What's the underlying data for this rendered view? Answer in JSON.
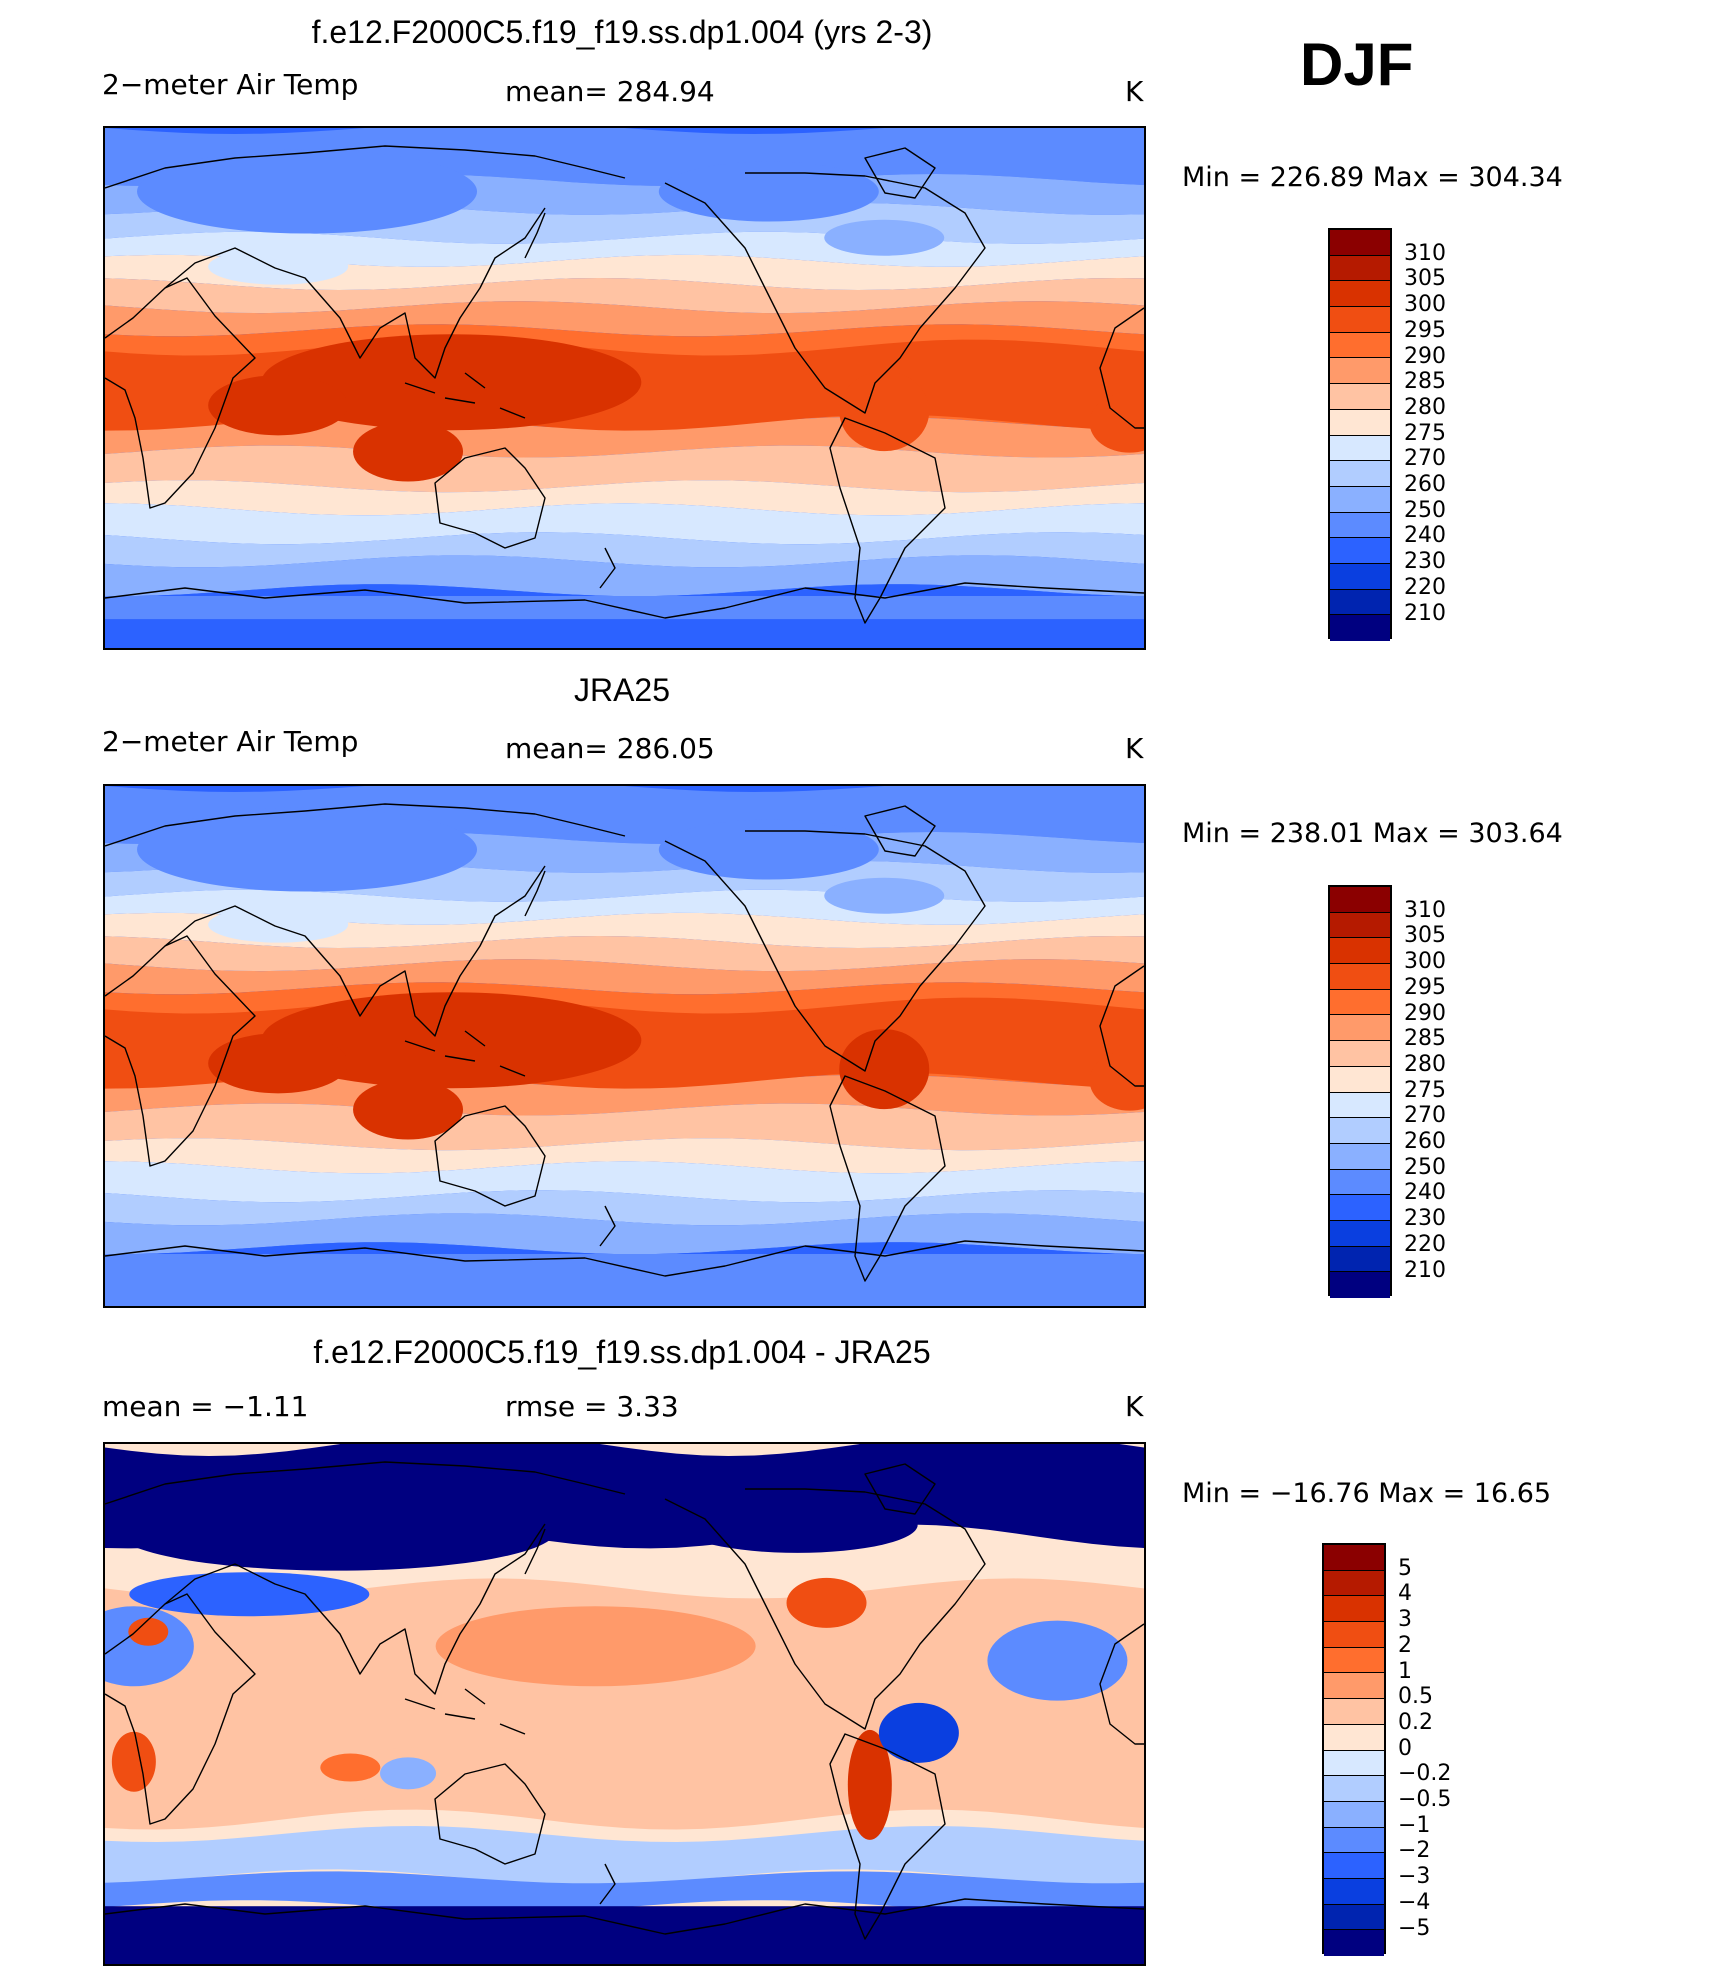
{
  "season": "DJF",
  "panels": [
    {
      "title": "f.e12.F2000C5.f19_f19.ss.dp1.004 (yrs 2-3)",
      "left": "2−meter Air Temp",
      "center": "mean=  284.94",
      "units": "K",
      "minmax": "Min  =  226.89  Max  =  304.34",
      "field": "abs"
    },
    {
      "title": "JRA25",
      "left": "2−meter Air Temp",
      "center": "mean=  286.05",
      "units": "K",
      "minmax": "Min  =  238.01  Max  =  303.64",
      "field": "abs2"
    },
    {
      "title": "f.e12.F2000C5.f19_f19.ss.dp1.004 - JRA25",
      "left": "mean  =    −1.11",
      "center": "rmse  =     3.33",
      "units": "K",
      "minmax": "Min  =  −16.76  Max  =    16.65",
      "field": "diff"
    }
  ],
  "colorbars": {
    "abs": {
      "labels": [
        "310",
        "305",
        "300",
        "295",
        "290",
        "285",
        "280",
        "275",
        "270",
        "260",
        "250",
        "240",
        "230",
        "220",
        "210"
      ],
      "colors": [
        "#8b0000",
        "#b51a00",
        "#d93200",
        "#f04e12",
        "#ff6e2e",
        "#ff9a6a",
        "#ffc3a3",
        "#ffe6d3",
        "#d7e8ff",
        "#b1cdff",
        "#8ab0ff",
        "#5c8bff",
        "#2c62ff",
        "#0a3fe0",
        "#0024b0",
        "#000080"
      ]
    },
    "diff": {
      "labels": [
        "5",
        "4",
        "3",
        "2",
        "1",
        "0.5",
        "0.2",
        "0",
        "−0.2",
        "−0.5",
        "−1",
        "−2",
        "−3",
        "−4",
        "−5"
      ],
      "colors": [
        "#8b0000",
        "#b51a00",
        "#d93200",
        "#f04e12",
        "#ff6e2e",
        "#ff9a6a",
        "#ffc3a3",
        "#ffe6d3",
        "#d7e8ff",
        "#b1cdff",
        "#8ab0ff",
        "#5c8bff",
        "#2c62ff",
        "#0a3fe0",
        "#0024b0",
        "#000080"
      ]
    }
  }
}
